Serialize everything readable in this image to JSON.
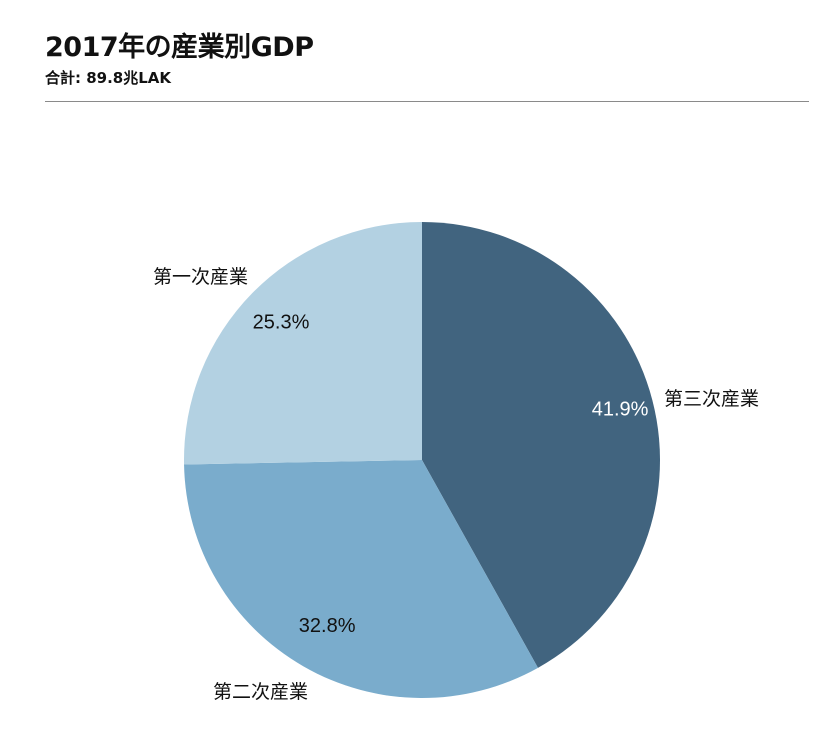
{
  "chart_data": {
    "type": "pie",
    "title": "2017年の産業別GDP",
    "subtitle": "合計: 89.8兆LAK",
    "slices": [
      {
        "label": "第三次産業",
        "value": 41.9,
        "value_label": "41.9%",
        "color": "#41647f",
        "text_color": "#ffffff"
      },
      {
        "label": "第二次産業",
        "value": 32.8,
        "value_label": "32.8%",
        "color": "#7aaccc",
        "text_color": "#111111"
      },
      {
        "label": "第一次産業",
        "value": 25.3,
        "value_label": "25.3%",
        "color": "#b3d1e2",
        "text_color": "#111111"
      }
    ],
    "start": "12 o'clock",
    "direction": "clockwise",
    "legend": "none"
  }
}
